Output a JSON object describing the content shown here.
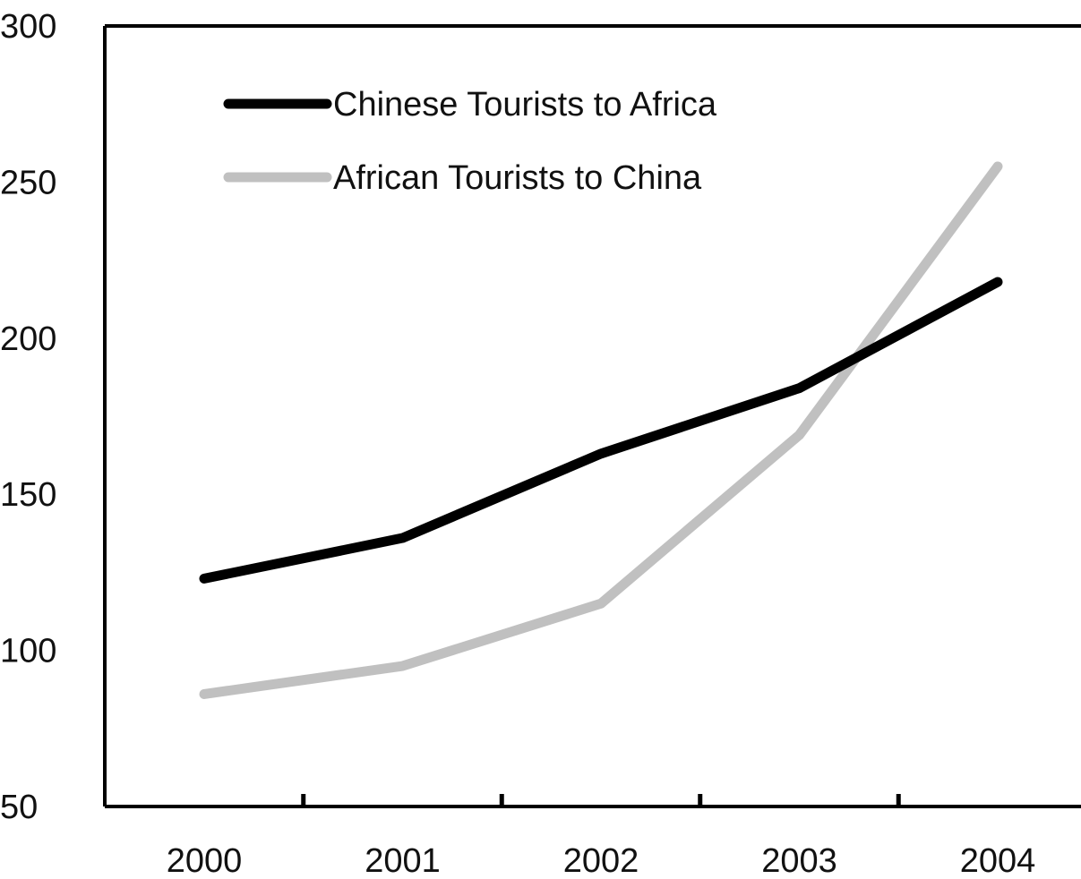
{
  "chart_data": {
    "type": "line",
    "title": "",
    "xlabel": "",
    "ylabel": "",
    "categories": [
      "2000",
      "2001",
      "2002",
      "2003",
      "2004"
    ],
    "ylim": [
      50,
      300
    ],
    "yticks": [
      50,
      100,
      150,
      200,
      250,
      300
    ],
    "grid": false,
    "legend_position": "top-left",
    "series": [
      {
        "name": "Chinese Tourists to Africa",
        "color": "#000000",
        "values": [
          123,
          136,
          163,
          184,
          218
        ]
      },
      {
        "name": "African Tourists to China",
        "color": "#c0c0c0",
        "values": [
          86,
          95,
          115,
          169,
          255
        ]
      }
    ]
  }
}
